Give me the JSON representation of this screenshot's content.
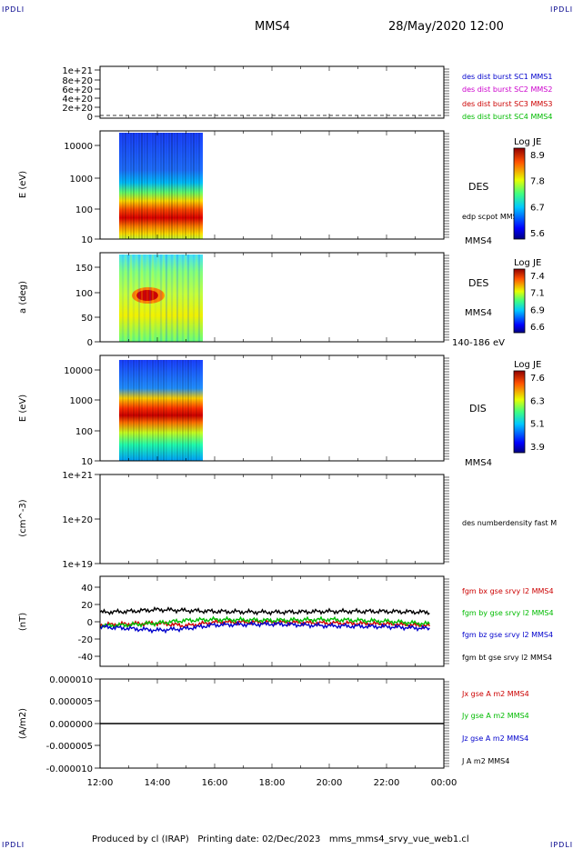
{
  "corner_label": "IPDLI",
  "header": {
    "spacecraft": "MMS4",
    "datetime": "28/May/2020 12:00"
  },
  "footer": {
    "text": "Produced by cl (IRAP)   Printing date: 02/Dec/2023   mms_mms4_srvy_vue_web1.cl"
  },
  "time_axis": {
    "ticks": [
      "12:00",
      "14:00",
      "16:00",
      "18:00",
      "20:00",
      "22:00",
      "00:00"
    ]
  },
  "panels": {
    "dist": {
      "yticks": [
        "1e+21",
        "8e+20",
        "6e+20",
        "4e+20",
        "2e+20",
        "0"
      ],
      "legend": [
        {
          "text": "des dist burst SC1 MMS1",
          "color": "#0000cc"
        },
        {
          "text": "des dist burst SC2 MMS2",
          "color": "#cc00cc"
        },
        {
          "text": "des dist burst SC3 MMS3",
          "color": "#cc0000"
        },
        {
          "text": "des dist burst SC4 MMS4",
          "color": "#00bb00"
        }
      ]
    },
    "des_energy": {
      "ylabel": "E (eV)",
      "yticks": [
        "10000",
        "1000",
        "100",
        "10"
      ],
      "label": "DES",
      "sub_label": "MMS4",
      "overlay_label": "edp scpot MMS4",
      "colorbar": {
        "title": "Log JE",
        "ticks": [
          "8.9",
          "7.8",
          "6.7",
          "5.6"
        ]
      }
    },
    "des_pitch": {
      "ylabel": "a (deg)",
      "yticks": [
        "150",
        "100",
        "50",
        "0"
      ],
      "label": "DES",
      "sub_label": "MMS4",
      "bottom_label": "140-186 eV",
      "colorbar": {
        "title": "Log JE",
        "ticks": [
          "7.4",
          "7.1",
          "6.9",
          "6.6"
        ]
      }
    },
    "dis_energy": {
      "ylabel": "E (eV)",
      "yticks": [
        "10000",
        "1000",
        "100",
        "10"
      ],
      "label": "DIS",
      "sub_label": "MMS4",
      "colorbar": {
        "title": "Log JE",
        "ticks": [
          "7.6",
          "6.3",
          "5.1",
          "3.9"
        ]
      }
    },
    "density": {
      "ylabel": "(cm^-3)",
      "yticks": [
        "1e+21",
        "1e+20",
        "1e+19"
      ],
      "legend": [
        {
          "text": "des numberdensity fast M",
          "color": "#000000"
        }
      ]
    },
    "fgm": {
      "ylabel": "(nT)",
      "yticks": [
        "40",
        "20",
        "0",
        "-20",
        "-40"
      ],
      "legend": [
        {
          "text": "fgm bx gse srvy l2 MMS4",
          "color": "#cc0000"
        },
        {
          "text": "fgm by gse srvy l2 MMS4",
          "color": "#00bb00"
        },
        {
          "text": "fgm bz gse srvy l2 MMS4",
          "color": "#0000cc"
        },
        {
          "text": "fgm bt gse srvy l2 MMS4",
          "color": "#000000"
        }
      ]
    },
    "current": {
      "ylabel": "(A/m2)",
      "yticks": [
        "0.000010",
        "0.000005",
        "0.000000",
        "-0.000005",
        "-0.000010"
      ],
      "legend": [
        {
          "text": "Jx gse A m2 MMS4",
          "color": "#cc0000"
        },
        {
          "text": "Jy gse A m2 MMS4",
          "color": "#00bb00"
        },
        {
          "text": "Jz gse A m2 MMS4",
          "color": "#0000cc"
        },
        {
          "text": "J A m2 MMS4",
          "color": "#000000"
        }
      ]
    }
  },
  "chart_data": {
    "type": "line",
    "x_range": [
      "12:00",
      "00:00"
    ],
    "series": [
      {
        "name": "fgm bx gse srvy l2 MMS4",
        "x": [
          "12:00",
          "13:00",
          "14:00",
          "15:00",
          "16:00",
          "18:00",
          "20:00",
          "22:00",
          "23:30"
        ],
        "values": [
          -4,
          -3,
          -2,
          -5,
          -1,
          -1,
          -2,
          -3,
          -5
        ]
      },
      {
        "name": "fgm by gse srvy l2 MMS4",
        "x": [
          "12:00",
          "13:00",
          "14:00",
          "15:00",
          "16:00",
          "18:00",
          "20:00",
          "22:00",
          "23:30"
        ],
        "values": [
          -5,
          -4,
          -2,
          1,
          2,
          1,
          2,
          0,
          -3
        ]
      },
      {
        "name": "fgm bz gse srvy l2 MMS4",
        "x": [
          "12:00",
          "13:00",
          "14:00",
          "15:00",
          "16:00",
          "18:00",
          "20:00",
          "22:00",
          "23:30"
        ],
        "values": [
          -6,
          -8,
          -10,
          -8,
          -4,
          -3,
          -5,
          -6,
          -8
        ]
      },
      {
        "name": "fgm bt gse srvy l2 MMS4",
        "x": [
          "12:00",
          "13:00",
          "14:00",
          "15:00",
          "16:00",
          "18:00",
          "20:00",
          "22:00",
          "23:30"
        ],
        "values": [
          10,
          11,
          13,
          12,
          11,
          10,
          11,
          11,
          10
        ]
      }
    ],
    "ylim": [
      -50,
      50
    ]
  }
}
